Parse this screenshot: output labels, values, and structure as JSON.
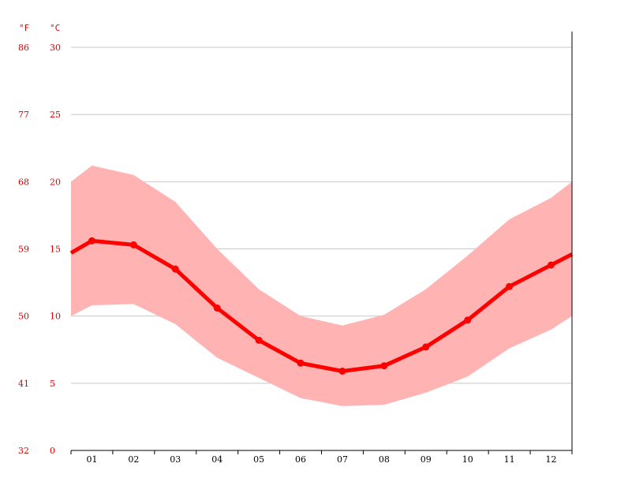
{
  "chart_data": {
    "type": "line",
    "categories": [
      "01",
      "02",
      "03",
      "04",
      "05",
      "06",
      "07",
      "08",
      "09",
      "10",
      "11",
      "12"
    ],
    "series": [
      {
        "role": "avg",
        "values": [
          15.6,
          15.3,
          13.5,
          10.6,
          8.2,
          6.5,
          5.9,
          6.3,
          7.7,
          9.7,
          12.2,
          13.8
        ]
      },
      {
        "role": "high",
        "values": [
          21.2,
          20.5,
          18.5,
          15.0,
          12.0,
          10.0,
          9.3,
          10.1,
          12.0,
          14.5,
          17.2,
          18.8
        ]
      },
      {
        "role": "low",
        "values": [
          10.8,
          10.9,
          9.4,
          6.9,
          5.4,
          3.9,
          3.3,
          3.4,
          4.3,
          5.5,
          7.6,
          9.0
        ]
      }
    ],
    "edges": {
      "avg": {
        "start": 14.7,
        "end": 14.6
      },
      "high": {
        "start": 20.0,
        "end": 20.0
      },
      "low": {
        "start": 10.0,
        "end": 10.0
      }
    },
    "ylim": [
      0,
      30
    ],
    "yticks_c": [
      "0",
      "5",
      "10",
      "15",
      "20",
      "25",
      "30"
    ],
    "yticks_f": [
      "32",
      "41",
      "50",
      "59",
      "68",
      "77",
      "86"
    ],
    "unit_f": "°F",
    "unit_c": "°C",
    "grid": true,
    "colors": {
      "line": "#ff0000",
      "band": "#ffb3b3",
      "grid": "#c8c8c8",
      "tick_label": "#dd0000",
      "axis": "#000000"
    }
  }
}
